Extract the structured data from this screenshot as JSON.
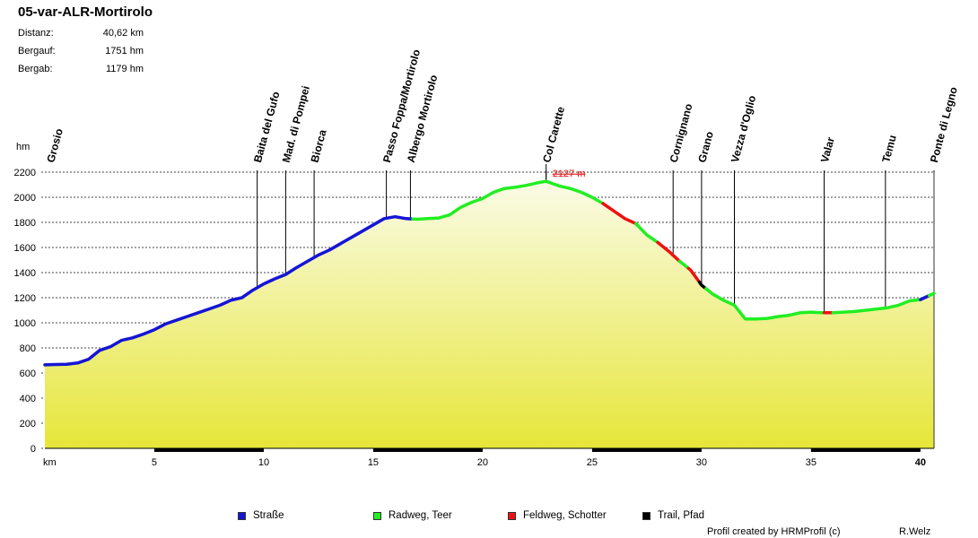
{
  "header": {
    "title": "05-var-ALR-Mortirolo",
    "stats": [
      {
        "label": "Distanz:",
        "value": "40,62 km"
      },
      {
        "label": "Bergauf:",
        "value": "1751 hm"
      },
      {
        "label": "Bergab:",
        "value": "1179 hm"
      }
    ]
  },
  "chart_data": {
    "type": "area",
    "title": "05-var-ALR-Mortirolo",
    "xlabel": "km",
    "ylabel": "hm",
    "xlim": [
      0,
      40.62
    ],
    "ylim": [
      0,
      2200
    ],
    "xticks": [
      5,
      10,
      15,
      20,
      25,
      30,
      35,
      40
    ],
    "yticks": [
      0,
      200,
      400,
      600,
      800,
      1000,
      1200,
      1400,
      1600,
      1800,
      2000,
      2200
    ],
    "grid": true,
    "peak_label": "2127 m",
    "peak": {
      "x": 22.9,
      "y": 2127
    },
    "profile": [
      [
        0,
        665
      ],
      [
        0.5,
        668
      ],
      [
        1.0,
        670
      ],
      [
        1.5,
        680
      ],
      [
        2.0,
        710
      ],
      [
        2.5,
        780
      ],
      [
        3.0,
        810
      ],
      [
        3.5,
        860
      ],
      [
        4.0,
        880
      ],
      [
        4.5,
        910
      ],
      [
        5.0,
        945
      ],
      [
        5.5,
        990
      ],
      [
        6.0,
        1020
      ],
      [
        6.5,
        1050
      ],
      [
        7.0,
        1080
      ],
      [
        7.5,
        1110
      ],
      [
        8.0,
        1140
      ],
      [
        8.5,
        1180
      ],
      [
        9.0,
        1200
      ],
      [
        9.5,
        1260
      ],
      [
        10.0,
        1310
      ],
      [
        10.5,
        1350
      ],
      [
        11.0,
        1385
      ],
      [
        11.5,
        1440
      ],
      [
        12.0,
        1490
      ],
      [
        12.5,
        1540
      ],
      [
        13.0,
        1580
      ],
      [
        13.5,
        1630
      ],
      [
        14.0,
        1680
      ],
      [
        14.5,
        1730
      ],
      [
        15.0,
        1780
      ],
      [
        15.5,
        1830
      ],
      [
        16.0,
        1845
      ],
      [
        16.5,
        1830
      ],
      [
        17.0,
        1825
      ],
      [
        17.5,
        1830
      ],
      [
        18.0,
        1835
      ],
      [
        18.5,
        1860
      ],
      [
        19.0,
        1920
      ],
      [
        19.5,
        1960
      ],
      [
        20.0,
        1990
      ],
      [
        20.5,
        2040
      ],
      [
        21.0,
        2070
      ],
      [
        21.5,
        2080
      ],
      [
        22.0,
        2095
      ],
      [
        22.5,
        2115
      ],
      [
        22.9,
        2127
      ],
      [
        23.5,
        2090
      ],
      [
        24.0,
        2070
      ],
      [
        24.5,
        2040
      ],
      [
        25.0,
        2000
      ],
      [
        25.5,
        1950
      ],
      [
        26.0,
        1890
      ],
      [
        26.5,
        1830
      ],
      [
        27.0,
        1790
      ],
      [
        27.5,
        1700
      ],
      [
        28.0,
        1640
      ],
      [
        28.5,
        1570
      ],
      [
        29.0,
        1490
      ],
      [
        29.5,
        1420
      ],
      [
        30.0,
        1300
      ],
      [
        30.5,
        1230
      ],
      [
        31.0,
        1180
      ],
      [
        31.5,
        1140
      ],
      [
        32.0,
        1030
      ],
      [
        32.5,
        1030
      ],
      [
        33.0,
        1035
      ],
      [
        33.5,
        1050
      ],
      [
        34.0,
        1060
      ],
      [
        34.5,
        1080
      ],
      [
        35.0,
        1085
      ],
      [
        35.5,
        1080
      ],
      [
        36.0,
        1080
      ],
      [
        36.5,
        1085
      ],
      [
        37.0,
        1090
      ],
      [
        37.5,
        1100
      ],
      [
        38.0,
        1110
      ],
      [
        38.5,
        1120
      ],
      [
        39.0,
        1140
      ],
      [
        39.5,
        1175
      ],
      [
        40.0,
        1185
      ],
      [
        40.62,
        1235
      ]
    ],
    "segments": [
      {
        "from": 0,
        "to": 16.8,
        "type": "Straße"
      },
      {
        "from": 16.8,
        "to": 25.5,
        "type": "Radweg, Teer"
      },
      {
        "from": 25.5,
        "to": 27.0,
        "type": "Feldweg, Schotter"
      },
      {
        "from": 27.0,
        "to": 28.0,
        "type": "Radweg, Teer"
      },
      {
        "from": 28.0,
        "to": 29.0,
        "type": "Feldweg, Schotter"
      },
      {
        "from": 29.0,
        "to": 29.4,
        "type": "Radweg, Teer"
      },
      {
        "from": 29.4,
        "to": 29.9,
        "type": "Feldweg, Schotter"
      },
      {
        "from": 29.9,
        "to": 30.2,
        "type": "Trail, Pfad"
      },
      {
        "from": 30.2,
        "to": 35.6,
        "type": "Radweg, Teer"
      },
      {
        "from": 35.6,
        "to": 36.0,
        "type": "Feldweg, Schotter"
      },
      {
        "from": 36.0,
        "to": 40.0,
        "type": "Radweg, Teer"
      },
      {
        "from": 40.0,
        "to": 40.4,
        "type": "Straße"
      },
      {
        "from": 40.4,
        "to": 40.62,
        "type": "Radweg, Teer"
      }
    ],
    "waypoints": [
      {
        "name": "Grosio",
        "km": 0
      },
      {
        "name": "Baita del Gufo",
        "km": 9.7
      },
      {
        "name": "Mad. di Pompei",
        "km": 11.0
      },
      {
        "name": "Biorca",
        "km": 12.3
      },
      {
        "name": "Passo Foppa/Mortirolo",
        "km": 15.6
      },
      {
        "name": "Albergo Mortirolo",
        "km": 16.7
      },
      {
        "name": "Col Carette",
        "km": 22.9
      },
      {
        "name": "Cornignano",
        "km": 28.7
      },
      {
        "name": "Grano",
        "km": 30.0
      },
      {
        "name": "Vezza d'Oglio",
        "km": 31.5
      },
      {
        "name": "Valar",
        "km": 35.6
      },
      {
        "name": "Temu",
        "km": 38.4
      },
      {
        "name": "Ponte di Legno",
        "km": 40.6
      }
    ]
  },
  "legend": [
    {
      "label": "Straße",
      "color": "#1515d6"
    },
    {
      "label": "Radweg, Teer",
      "color": "#22ee22"
    },
    {
      "label": "Feldweg, Schotter",
      "color": "#ee1111"
    },
    {
      "label": "Trail, Pfad",
      "color": "#000000"
    }
  ],
  "footer": {
    "credit": "Profil created by HRMProfil (c)",
    "author": "R.Welz"
  },
  "colors": {
    "fill_top": "#fafbe6",
    "fill_bottom": "#e6e63a",
    "peak_label": "#dd1111"
  }
}
